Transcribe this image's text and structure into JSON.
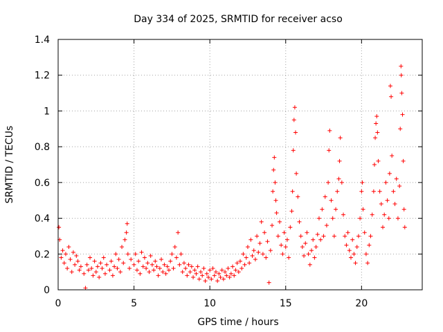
{
  "chart_data": {
    "type": "scatter",
    "title": "Day 334 of 2025, SRMTID for receiver acso",
    "xlabel": "GPS time / hours",
    "ylabel": "SRMTID / TECUs",
    "xlim": [
      0,
      24
    ],
    "ylim": [
      0,
      1.4
    ],
    "x_ticks": [
      0,
      5,
      10,
      15,
      20
    ],
    "y_ticks": [
      0,
      0.2,
      0.4,
      0.6,
      0.8,
      1.0,
      1.2,
      1.4
    ],
    "x_tick_labels": [
      "0",
      "5",
      "10",
      "15",
      "20"
    ],
    "y_tick_labels": [
      "0",
      "0.2",
      "0.4",
      "0.6",
      "0.8",
      "1",
      "1.2",
      "1.4"
    ],
    "grid": true,
    "marker": "+",
    "color": "#ff0000",
    "series": [
      {
        "name": "SRMTID",
        "points": [
          [
            0.05,
            0.35
          ],
          [
            0.1,
            0.28
          ],
          [
            0.2,
            0.18
          ],
          [
            0.3,
            0.22
          ],
          [
            0.4,
            0.15
          ],
          [
            0.5,
            0.2
          ],
          [
            0.6,
            0.12
          ],
          [
            0.7,
            0.24
          ],
          [
            0.8,
            0.17
          ],
          [
            0.9,
            0.1
          ],
          [
            1.0,
            0.21
          ],
          [
            1.1,
            0.14
          ],
          [
            1.2,
            0.19
          ],
          [
            1.3,
            0.16
          ],
          [
            1.4,
            0.11
          ],
          [
            1.5,
            0.13
          ],
          [
            1.7,
            0.09
          ],
          [
            1.8,
            0.01
          ],
          [
            1.9,
            0.14
          ],
          [
            2.0,
            0.11
          ],
          [
            2.1,
            0.18
          ],
          [
            2.2,
            0.12
          ],
          [
            2.3,
            0.08
          ],
          [
            2.4,
            0.16
          ],
          [
            2.5,
            0.1
          ],
          [
            2.6,
            0.13
          ],
          [
            2.7,
            0.07
          ],
          [
            2.8,
            0.15
          ],
          [
            2.9,
            0.12
          ],
          [
            3.0,
            0.18
          ],
          [
            3.1,
            0.09
          ],
          [
            3.2,
            0.14
          ],
          [
            3.4,
            0.11
          ],
          [
            3.5,
            0.16
          ],
          [
            3.6,
            0.08
          ],
          [
            3.7,
            0.13
          ],
          [
            3.8,
            0.2
          ],
          [
            3.9,
            0.12
          ],
          [
            4.0,
            0.17
          ],
          [
            4.1,
            0.1
          ],
          [
            4.2,
            0.24
          ],
          [
            4.3,
            0.15
          ],
          [
            4.4,
            0.28
          ],
          [
            4.5,
            0.32
          ],
          [
            4.55,
            0.37
          ],
          [
            4.6,
            0.2
          ],
          [
            4.7,
            0.12
          ],
          [
            4.8,
            0.17
          ],
          [
            5.0,
            0.14
          ],
          [
            5.1,
            0.2
          ],
          [
            5.2,
            0.11
          ],
          [
            5.3,
            0.16
          ],
          [
            5.4,
            0.09
          ],
          [
            5.5,
            0.21
          ],
          [
            5.6,
            0.13
          ],
          [
            5.7,
            0.18
          ],
          [
            5.8,
            0.12
          ],
          [
            5.9,
            0.15
          ],
          [
            6.0,
            0.1
          ],
          [
            6.1,
            0.19
          ],
          [
            6.2,
            0.14
          ],
          [
            6.3,
            0.11
          ],
          [
            6.4,
            0.16
          ],
          [
            6.5,
            0.13
          ],
          [
            6.6,
            0.08
          ],
          [
            6.7,
            0.12
          ],
          [
            6.8,
            0.17
          ],
          [
            6.9,
            0.1
          ],
          [
            7.0,
            0.14
          ],
          [
            7.1,
            0.09
          ],
          [
            7.2,
            0.13
          ],
          [
            7.3,
            0.11
          ],
          [
            7.4,
            0.16
          ],
          [
            7.5,
            0.2
          ],
          [
            7.6,
            0.12
          ],
          [
            7.7,
            0.24
          ],
          [
            7.8,
            0.18
          ],
          [
            7.9,
            0.32
          ],
          [
            8.0,
            0.14
          ],
          [
            8.1,
            0.2
          ],
          [
            8.2,
            0.1
          ],
          [
            8.3,
            0.15
          ],
          [
            8.4,
            0.12
          ],
          [
            8.5,
            0.08
          ],
          [
            8.6,
            0.14
          ],
          [
            8.7,
            0.1
          ],
          [
            8.8,
            0.13
          ],
          [
            8.9,
            0.07
          ],
          [
            9.0,
            0.11
          ],
          [
            9.1,
            0.09
          ],
          [
            9.2,
            0.13
          ],
          [
            9.3,
            0.06
          ],
          [
            9.4,
            0.1
          ],
          [
            9.5,
            0.08
          ],
          [
            9.6,
            0.12
          ],
          [
            9.7,
            0.05
          ],
          [
            9.8,
            0.09
          ],
          [
            9.9,
            0.07
          ],
          [
            10.0,
            0.11
          ],
          [
            10.1,
            0.06
          ],
          [
            10.2,
            0.12
          ],
          [
            10.3,
            0.08
          ],
          [
            10.4,
            0.1
          ],
          [
            10.5,
            0.05
          ],
          [
            10.6,
            0.09
          ],
          [
            10.7,
            0.07
          ],
          [
            10.8,
            0.11
          ],
          [
            10.9,
            0.06
          ],
          [
            11.0,
            0.1
          ],
          [
            11.1,
            0.08
          ],
          [
            11.2,
            0.12
          ],
          [
            11.3,
            0.07
          ],
          [
            11.4,
            0.09
          ],
          [
            11.5,
            0.13
          ],
          [
            11.6,
            0.08
          ],
          [
            11.7,
            0.11
          ],
          [
            11.8,
            0.15
          ],
          [
            11.9,
            0.1
          ],
          [
            12.0,
            0.16
          ],
          [
            12.1,
            0.12
          ],
          [
            12.2,
            0.2
          ],
          [
            12.3,
            0.14
          ],
          [
            12.4,
            0.18
          ],
          [
            12.5,
            0.24
          ],
          [
            12.6,
            0.15
          ],
          [
            12.7,
            0.28
          ],
          [
            12.8,
            0.19
          ],
          [
            12.9,
            0.22
          ],
          [
            13.0,
            0.17
          ],
          [
            13.1,
            0.3
          ],
          [
            13.2,
            0.21
          ],
          [
            13.3,
            0.26
          ],
          [
            13.4,
            0.38
          ],
          [
            13.5,
            0.2
          ],
          [
            13.6,
            0.32
          ],
          [
            13.7,
            0.18
          ],
          [
            13.8,
            0.27
          ],
          [
            13.9,
            0.04
          ],
          [
            14.0,
            0.22
          ],
          [
            14.1,
            0.36
          ],
          [
            14.15,
            0.55
          ],
          [
            14.2,
            0.67
          ],
          [
            14.25,
            0.74
          ],
          [
            14.3,
            0.6
          ],
          [
            14.35,
            0.5
          ],
          [
            14.4,
            0.43
          ],
          [
            14.5,
            0.3
          ],
          [
            14.6,
            0.38
          ],
          [
            14.7,
            0.25
          ],
          [
            14.8,
            0.2
          ],
          [
            14.9,
            0.32
          ],
          [
            15.0,
            0.24
          ],
          [
            15.1,
            0.28
          ],
          [
            15.2,
            0.18
          ],
          [
            15.3,
            0.35
          ],
          [
            15.4,
            0.44
          ],
          [
            15.45,
            0.55
          ],
          [
            15.5,
            0.78
          ],
          [
            15.55,
            0.95
          ],
          [
            15.6,
            1.02
          ],
          [
            15.65,
            0.88
          ],
          [
            15.7,
            0.65
          ],
          [
            15.8,
            0.52
          ],
          [
            15.9,
            0.38
          ],
          [
            16.0,
            0.3
          ],
          [
            16.1,
            0.24
          ],
          [
            16.2,
            0.19
          ],
          [
            16.3,
            0.26
          ],
          [
            16.4,
            0.32
          ],
          [
            16.5,
            0.2
          ],
          [
            16.6,
            0.14
          ],
          [
            16.7,
            0.22
          ],
          [
            16.8,
            0.28
          ],
          [
            16.9,
            0.18
          ],
          [
            17.0,
            0.24
          ],
          [
            17.1,
            0.31
          ],
          [
            17.2,
            0.4
          ],
          [
            17.3,
            0.28
          ],
          [
            17.4,
            0.45
          ],
          [
            17.5,
            0.3
          ],
          [
            17.6,
            0.52
          ],
          [
            17.7,
            0.36
          ],
          [
            17.8,
            0.6
          ],
          [
            17.85,
            0.78
          ],
          [
            17.9,
            0.89
          ],
          [
            18.0,
            0.5
          ],
          [
            18.1,
            0.4
          ],
          [
            18.2,
            0.3
          ],
          [
            18.3,
            0.45
          ],
          [
            18.4,
            0.55
          ],
          [
            18.5,
            0.62
          ],
          [
            18.55,
            0.72
          ],
          [
            18.6,
            0.85
          ],
          [
            18.7,
            0.6
          ],
          [
            18.8,
            0.42
          ],
          [
            18.9,
            0.3
          ],
          [
            19.0,
            0.25
          ],
          [
            19.1,
            0.32
          ],
          [
            19.2,
            0.22
          ],
          [
            19.3,
            0.18
          ],
          [
            19.4,
            0.28
          ],
          [
            19.5,
            0.2
          ],
          [
            19.6,
            0.15
          ],
          [
            19.7,
            0.24
          ],
          [
            19.8,
            0.3
          ],
          [
            19.9,
            0.4
          ],
          [
            20.0,
            0.55
          ],
          [
            20.05,
            0.6
          ],
          [
            20.1,
            0.45
          ],
          [
            20.2,
            0.32
          ],
          [
            20.3,
            0.2
          ],
          [
            20.4,
            0.15
          ],
          [
            20.5,
            0.25
          ],
          [
            20.6,
            0.3
          ],
          [
            20.7,
            0.42
          ],
          [
            20.8,
            0.55
          ],
          [
            20.85,
            0.7
          ],
          [
            20.9,
            0.85
          ],
          [
            20.95,
            0.93
          ],
          [
            21.0,
            0.97
          ],
          [
            21.05,
            0.88
          ],
          [
            21.1,
            0.72
          ],
          [
            21.2,
            0.55
          ],
          [
            21.3,
            0.48
          ],
          [
            21.4,
            0.35
          ],
          [
            21.5,
            0.42
          ],
          [
            21.6,
            0.6
          ],
          [
            21.7,
            0.5
          ],
          [
            21.8,
            0.4
          ],
          [
            21.85,
            0.65
          ],
          [
            21.9,
            1.14
          ],
          [
            21.95,
            1.08
          ],
          [
            22.0,
            0.75
          ],
          [
            22.1,
            0.55
          ],
          [
            22.2,
            0.48
          ],
          [
            22.3,
            0.62
          ],
          [
            22.4,
            0.4
          ],
          [
            22.5,
            0.58
          ],
          [
            22.55,
            0.9
          ],
          [
            22.6,
            1.25
          ],
          [
            22.62,
            1.2
          ],
          [
            22.65,
            1.1
          ],
          [
            22.7,
            0.98
          ],
          [
            22.75,
            0.72
          ],
          [
            22.8,
            0.45
          ],
          [
            22.85,
            0.35
          ]
        ]
      }
    ]
  }
}
